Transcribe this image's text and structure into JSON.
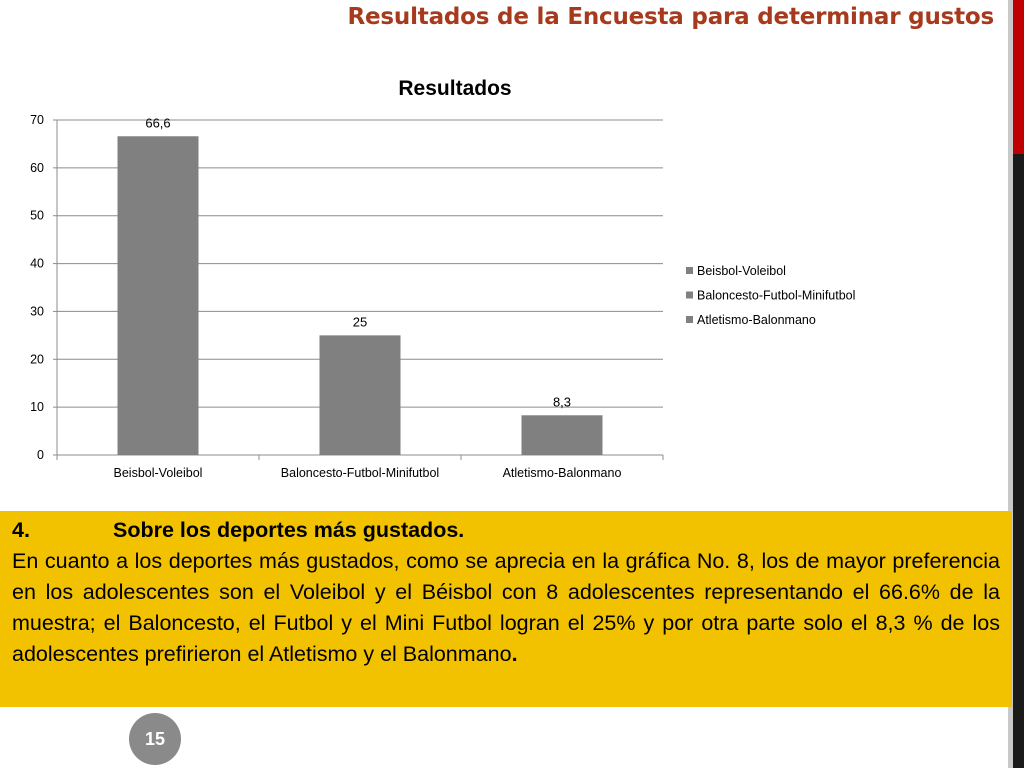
{
  "slide": {
    "title": "Resultados de la Encuesta para determinar gustos",
    "page_number": "15",
    "accent_color": "#a73a1c",
    "box_color": "#f2c200"
  },
  "text_box": {
    "number": "4.",
    "heading": "Sobre los deportes más gustados.",
    "body_main": "En cuanto a los deportes más gustados, como se aprecia en la gráfica No. 8, los de mayor preferencia en los adolescentes son el Voleibol y el Béisbol con 8 adolescentes representando el 66.6% de la muestra; el Baloncesto, el Futbol y el Mini Futbol logran el 25% y por otra parte solo el 8,3 %  de los adolescentes prefirieron el Atletismo y el Balonmano",
    "body_end": "."
  },
  "chart_data": {
    "type": "bar",
    "title": "Resultados",
    "categories": [
      "Beisbol-Voleibol",
      "Baloncesto-Futbol-Minifutbol",
      "Atletismo-Balonmano"
    ],
    "values": [
      66.6,
      25,
      8.3
    ],
    "data_labels": [
      "66,6",
      "25",
      "8,3"
    ],
    "ylim": [
      0,
      70
    ],
    "yticks": [
      0,
      10,
      20,
      30,
      40,
      50,
      60,
      70
    ],
    "grid": true,
    "bar_color": "#808080",
    "legend_position": "right",
    "legend": [
      "Beisbol-Voleibol",
      "Baloncesto-Futbol-Minifutbol",
      "Atletismo-Balonmano"
    ]
  }
}
